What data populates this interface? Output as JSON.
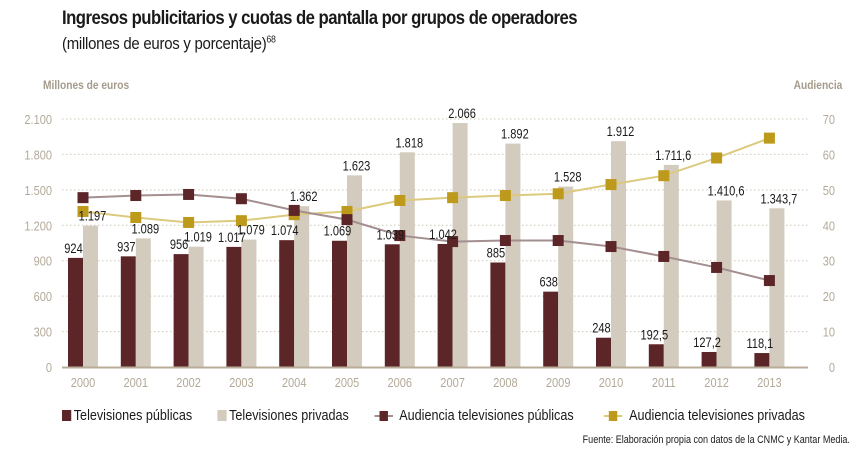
{
  "title": "Ingresos publicitarios y cuotas de pantalla por grupos de operadores",
  "subtitle": "(millones de euros y porcentaje)",
  "subtitle_footnote": "68",
  "left_axis_title": "Millones de euros",
  "right_axis_title": "Audiencia",
  "source": "Fuente: Elaboración propia con datos de la CNMC y Kantar Media.",
  "colors": {
    "public": "#5c2628",
    "private": "#d3cbbd",
    "public_line": "#a38e90",
    "private_line": "#dcca7e",
    "private_marker": "#bd9a1b",
    "axis_text": "#b3a999",
    "grid": "#cfc8bb"
  },
  "legend": [
    {
      "label": "Televisiones públicas",
      "kind": "bar",
      "series": "public"
    },
    {
      "label": "Televisiones privadas",
      "kind": "bar",
      "series": "private"
    },
    {
      "label": "Audiencia televisiones públicas",
      "kind": "line",
      "series": "public"
    },
    {
      "label": "Audiencia televisiones privadas",
      "kind": "line",
      "series": "private"
    }
  ],
  "chart_data": {
    "type": "bar",
    "title": "Ingresos publicitarios y cuotas de pantalla por grupos de operadores",
    "subtitle": "(millones de euros y porcentaje)",
    "xlabel": "",
    "ylabel": "Millones de euros",
    "y2label": "Audiencia",
    "ylim": [
      0,
      2100
    ],
    "y2lim": [
      0,
      70
    ],
    "yticks": [
      0,
      300,
      600,
      900,
      1200,
      1500,
      1800,
      2100
    ],
    "ytick_labels": [
      "0",
      "300",
      "600",
      "900",
      "1.200",
      "1.500",
      "1.800",
      "2.100"
    ],
    "y2ticks": [
      0,
      10,
      20,
      30,
      40,
      50,
      60,
      70
    ],
    "y2tick_labels": [
      "0",
      "10",
      "20",
      "30",
      "40",
      "50",
      "60",
      "70"
    ],
    "grid": true,
    "legend_position": "bottom",
    "categories": [
      "2000",
      "2001",
      "2002",
      "2003",
      "2004",
      "2005",
      "2006",
      "2007",
      "2008",
      "2009",
      "2010",
      "2011",
      "2012",
      "2013"
    ],
    "series": [
      {
        "name": "Televisiones públicas",
        "type": "bar",
        "axis": "left",
        "values": [
          924,
          937,
          956,
          1017,
          1074,
          1069,
          1039,
          1042,
          885,
          638,
          248,
          192.5,
          127.2,
          118.1
        ],
        "labels": [
          "924",
          "937",
          "956",
          "1.017",
          "1.074",
          "1.069",
          "1.039",
          "1.042",
          "885",
          "638",
          "248",
          "192,5",
          "127,2",
          "118,1"
        ]
      },
      {
        "name": "Televisiones privadas",
        "type": "bar",
        "axis": "left",
        "values": [
          1197,
          1089,
          1019,
          1079,
          1362,
          1623,
          1818,
          2066,
          1892,
          1528,
          1912,
          1711.6,
          1410.6,
          1343.7
        ],
        "labels": [
          "1.197",
          "1.089",
          "1.019",
          "1.079",
          "1.362",
          "1.623",
          "1.818",
          "2.066",
          "1.892",
          "1.528",
          "1.912",
          "1.711,6",
          "1.410,6",
          "1.343,7"
        ]
      },
      {
        "name": "Audiencia televisiones públicas",
        "type": "line",
        "axis": "right",
        "values": [
          47.8,
          48.4,
          48.7,
          47.5,
          44.2,
          41.6,
          37.1,
          35.4,
          35.7,
          35.7,
          34.0,
          31.2,
          28.1,
          24.4
        ]
      },
      {
        "name": "Audiencia televisiones privadas",
        "type": "line",
        "axis": "right",
        "values": [
          43.9,
          42.2,
          40.8,
          41.3,
          43.0,
          43.9,
          47.0,
          47.8,
          48.4,
          48.9,
          51.5,
          54.0,
          59.0,
          64.6
        ]
      }
    ]
  }
}
